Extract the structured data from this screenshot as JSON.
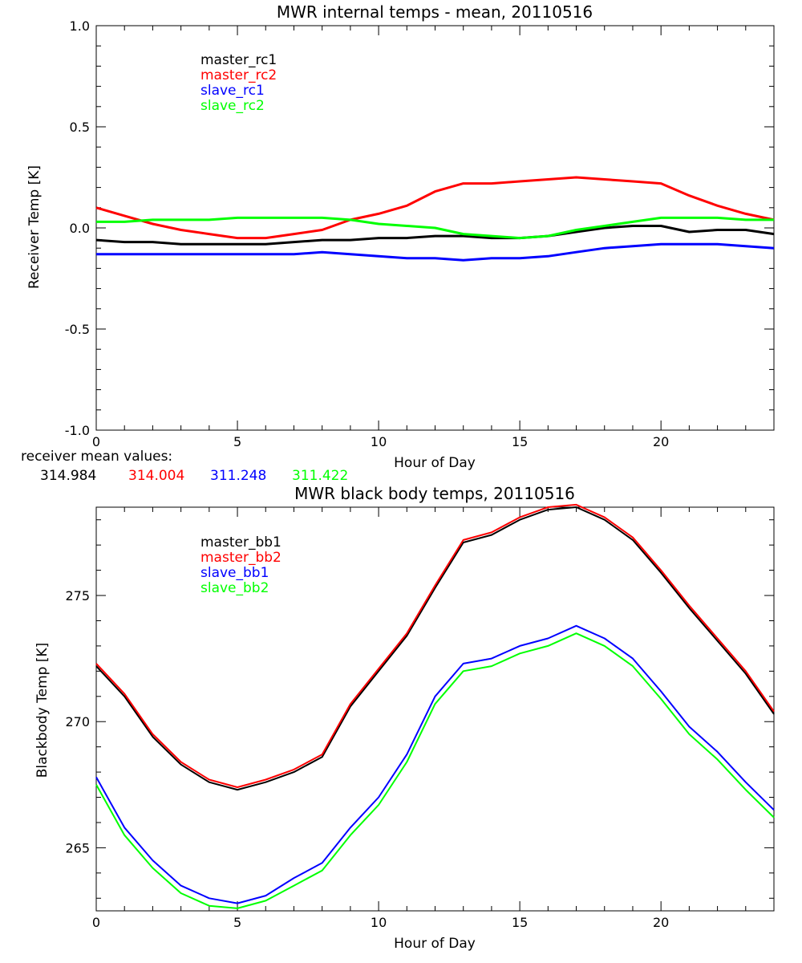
{
  "colors": {
    "black": "#000000",
    "red": "#ff0000",
    "blue": "#0000ff",
    "green": "#00ff00"
  },
  "means": {
    "label": "receiver mean values:",
    "values": [
      "314.984",
      "314.004",
      "311.248",
      "311.422"
    ]
  },
  "chart_data": [
    {
      "type": "line",
      "title": "MWR internal temps - mean, 20110516",
      "xlabel": "Hour of Day",
      "ylabel": "Receiver Temp [K]",
      "xlim": [
        0,
        24
      ],
      "ylim": [
        -1.0,
        1.0
      ],
      "xticks": [
        "0",
        "5",
        "10",
        "15",
        "20"
      ],
      "yticks": [
        "-1.0",
        "-0.5",
        "0.0",
        "0.5",
        "1.0"
      ],
      "legend_position": "top-left",
      "x": [
        0,
        1,
        2,
        3,
        4,
        5,
        6,
        7,
        8,
        9,
        10,
        11,
        12,
        13,
        14,
        15,
        16,
        17,
        18,
        19,
        20,
        21,
        22,
        23,
        24
      ],
      "series": [
        {
          "name": "master_rc1",
          "color": "black",
          "values": [
            -0.06,
            -0.07,
            -0.07,
            -0.08,
            -0.08,
            -0.08,
            -0.08,
            -0.07,
            -0.06,
            -0.06,
            -0.05,
            -0.05,
            -0.04,
            -0.04,
            -0.05,
            -0.05,
            -0.04,
            -0.02,
            0.0,
            0.01,
            0.01,
            -0.02,
            -0.01,
            -0.01,
            -0.03
          ]
        },
        {
          "name": "master_rc2",
          "color": "red",
          "values": [
            0.1,
            0.06,
            0.02,
            -0.01,
            -0.03,
            -0.05,
            -0.05,
            -0.03,
            -0.01,
            0.04,
            0.07,
            0.11,
            0.18,
            0.22,
            0.22,
            0.23,
            0.24,
            0.25,
            0.24,
            0.23,
            0.22,
            0.16,
            0.11,
            0.07,
            0.04
          ]
        },
        {
          "name": "slave_rc1",
          "color": "blue",
          "values": [
            -0.13,
            -0.13,
            -0.13,
            -0.13,
            -0.13,
            -0.13,
            -0.13,
            -0.13,
            -0.12,
            -0.13,
            -0.14,
            -0.15,
            -0.15,
            -0.16,
            -0.15,
            -0.15,
            -0.14,
            -0.12,
            -0.1,
            -0.09,
            -0.08,
            -0.08,
            -0.08,
            -0.09,
            -0.1
          ]
        },
        {
          "name": "slave_rc2",
          "color": "green",
          "values": [
            0.03,
            0.03,
            0.04,
            0.04,
            0.04,
            0.05,
            0.05,
            0.05,
            0.05,
            0.04,
            0.02,
            0.01,
            0.0,
            -0.03,
            -0.04,
            -0.05,
            -0.04,
            -0.01,
            0.01,
            0.03,
            0.05,
            0.05,
            0.05,
            0.04,
            0.04
          ]
        }
      ]
    },
    {
      "type": "line",
      "title": "MWR black body temps, 20110516",
      "xlabel": "Hour of Day",
      "ylabel": "Blackbody Temp [K]",
      "xlim": [
        0,
        24
      ],
      "ylim": [
        262.5,
        278.5
      ],
      "xticks": [
        "0",
        "5",
        "10",
        "15",
        "20"
      ],
      "yticks": [
        "265",
        "270",
        "275"
      ],
      "legend_position": "top-left",
      "x": [
        0,
        1,
        2,
        3,
        4,
        5,
        6,
        7,
        8,
        9,
        10,
        11,
        12,
        13,
        14,
        15,
        16,
        17,
        18,
        19,
        20,
        21,
        22,
        23,
        24
      ],
      "series": [
        {
          "name": "master_bb1",
          "color": "black",
          "values": [
            272.2,
            271.0,
            269.4,
            268.3,
            267.6,
            267.3,
            267.6,
            268.0,
            268.6,
            270.6,
            272.0,
            273.4,
            275.3,
            277.1,
            277.4,
            278.0,
            278.4,
            278.5,
            278.0,
            277.2,
            275.9,
            274.5,
            273.2,
            271.9,
            270.3
          ]
        },
        {
          "name": "master_bb2",
          "color": "red",
          "values": [
            272.3,
            271.1,
            269.5,
            268.4,
            267.7,
            267.4,
            267.7,
            268.1,
            268.7,
            270.7,
            272.1,
            273.5,
            275.4,
            277.2,
            277.5,
            278.1,
            278.5,
            278.6,
            278.1,
            277.3,
            276.0,
            274.6,
            273.3,
            272.0,
            270.4
          ]
        },
        {
          "name": "slave_bb1",
          "color": "blue",
          "values": [
            267.8,
            265.8,
            264.5,
            263.5,
            263.0,
            262.8,
            263.1,
            263.8,
            264.4,
            265.8,
            267.0,
            268.7,
            271.0,
            272.3,
            272.5,
            273.0,
            273.3,
            273.8,
            273.3,
            272.5,
            271.2,
            269.8,
            268.8,
            267.6,
            266.5
          ]
        },
        {
          "name": "slave_bb2",
          "color": "green",
          "values": [
            267.5,
            265.5,
            264.2,
            263.2,
            262.7,
            262.6,
            262.9,
            263.5,
            264.1,
            265.5,
            266.7,
            268.4,
            270.7,
            272.0,
            272.2,
            272.7,
            273.0,
            273.5,
            273.0,
            272.2,
            270.9,
            269.5,
            268.5,
            267.3,
            266.2
          ]
        }
      ]
    }
  ]
}
